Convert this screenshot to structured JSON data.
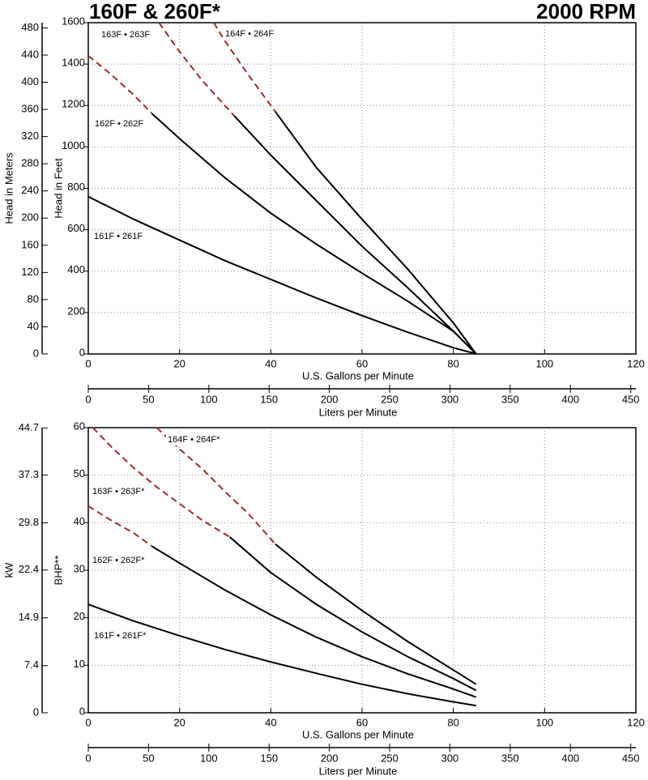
{
  "chart_data": [
    {
      "type": "line",
      "title": "160F & 260F*",
      "subtitle": "2000 RPM",
      "xlabel": "U.S. Gallons per Minute",
      "xlim": [
        0,
        120
      ],
      "xticks": [
        0,
        20,
        40,
        60,
        80,
        100,
        120
      ],
      "x2label": "Liters per Minute",
      "x2lim": [
        0,
        454.25
      ],
      "x2ticks": [
        0,
        50,
        100,
        150,
        200,
        250,
        300,
        350,
        400,
        450
      ],
      "ylabel": "Head in Feet",
      "ylim": [
        0,
        1600
      ],
      "yticks": [
        0,
        200,
        400,
        600,
        800,
        1000,
        1200,
        1400,
        1600
      ],
      "y2label": "Head in Meters",
      "y2lim": [
        0,
        487.68
      ],
      "y2ticks": [
        0,
        40,
        80,
        120,
        160,
        200,
        240,
        280,
        320,
        360,
        400,
        440,
        480
      ],
      "grid": true,
      "series": [
        {
          "name": "161F • 261F",
          "color": "#000000",
          "dashed_color": "#9b2d2a",
          "solid": {
            "x": [
              0,
              10,
              20,
              30,
              40,
              50,
              60,
              70,
              80,
              85
            ],
            "values": [
              760,
              650,
              550,
              450,
              360,
              270,
              185,
              105,
              30,
              0
            ]
          },
          "dashed": {
            "x": [],
            "values": []
          }
        },
        {
          "name": "162F • 262F",
          "color": "#000000",
          "dashed_color": "#9b2d2a",
          "solid": {
            "x": [
              14,
              20,
              30,
              40,
              50,
              60,
              70,
              80,
              85
            ],
            "values": [
              1160,
              1040,
              850,
              680,
              530,
              390,
              255,
              110,
              0
            ]
          },
          "dashed": {
            "x": [
              0,
              5,
              10,
              14
            ],
            "values": [
              1440,
              1350,
              1250,
              1160
            ]
          }
        },
        {
          "name": "163F • 263F",
          "color": "#000000",
          "dashed_color": "#9b2d2a",
          "solid": {
            "x": [
              32,
              40,
              50,
              60,
              70,
              80,
              85
            ],
            "values": [
              1150,
              960,
              740,
              520,
              320,
              110,
              0
            ]
          },
          "dashed": {
            "x": [
              15.5,
              20,
              25,
              32
            ],
            "values": [
              1600,
              1460,
              1320,
              1150
            ]
          }
        },
        {
          "name": "164F • 264F",
          "color": "#000000",
          "dashed_color": "#9b2d2a",
          "solid": {
            "x": [
              41,
              50,
              60,
              70,
              80,
              85
            ],
            "values": [
              1170,
              900,
              650,
              410,
              150,
              0
            ]
          },
          "dashed": {
            "x": [
              27.5,
              30,
              35,
              41
            ],
            "values": [
              1600,
              1510,
              1350,
              1170
            ]
          }
        }
      ]
    },
    {
      "type": "line",
      "xlabel": "U.S. Gallons per Minute",
      "xlim": [
        0,
        120
      ],
      "xticks": [
        0,
        20,
        40,
        60,
        80,
        100,
        120
      ],
      "x2label": "Liters per Minute",
      "x2lim": [
        0,
        454.25
      ],
      "x2ticks": [
        0,
        50,
        100,
        150,
        200,
        250,
        300,
        350,
        400,
        450
      ],
      "ylabel": "BHP**",
      "ylim": [
        0,
        60
      ],
      "yticks": [
        0,
        10,
        20,
        30,
        40,
        50,
        60
      ],
      "y2label": "kW",
      "y2lim": [
        0,
        44.74
      ],
      "y2ticks": [
        0,
        7.4,
        14.9,
        22.4,
        29.8,
        37.3,
        44.7
      ],
      "grid": true,
      "series": [
        {
          "name": "161F • 261F*",
          "color": "#000000",
          "dashed_color": "#9b2d2a",
          "solid": {
            "x": [
              0,
              10,
              20,
              30,
              40,
              50,
              60,
              70,
              80,
              85
            ],
            "values": [
              22.8,
              19.3,
              16.2,
              13.3,
              10.7,
              8.3,
              6.0,
              4.0,
              2.3,
              1.5
            ]
          },
          "dashed": {
            "x": [],
            "values": []
          }
        },
        {
          "name": "162F • 262F*",
          "color": "#000000",
          "dashed_color": "#9b2d2a",
          "solid": {
            "x": [
              14,
              20,
              30,
              40,
              50,
              60,
              70,
              80,
              85
            ],
            "values": [
              35,
              31.5,
              25.8,
              20.6,
              15.9,
              11.8,
              8.2,
              5,
              3.3
            ]
          },
          "dashed": {
            "x": [
              0,
              5,
              10,
              14
            ],
            "values": [
              43.5,
              40.5,
              37.8,
              35
            ]
          }
        },
        {
          "name": "163F • 263F*",
          "color": "#000000",
          "dashed_color": "#9b2d2a",
          "solid": {
            "x": [
              31,
              40,
              50,
              60,
              70,
              80,
              85
            ],
            "values": [
              37,
              29.5,
              22.8,
              17,
              11.8,
              7.2,
              4.7
            ]
          },
          "dashed": {
            "x": [
              1,
              5,
              10,
              15,
              20,
              25,
              31
            ],
            "values": [
              60,
              56,
              51.5,
              47.5,
              44,
              40.5,
              37
            ]
          }
        },
        {
          "name": "164F • 264F*",
          "color": "#000000",
          "dashed_color": "#9b2d2a",
          "solid": {
            "x": [
              41,
              50,
              60,
              70,
              80,
              85
            ],
            "values": [
              35.5,
              28.5,
              21.5,
              15,
              9,
              6
            ]
          },
          "dashed": {
            "x": [
              15,
              20,
              25,
              30,
              35,
              41
            ],
            "values": [
              60,
              55.5,
              51.3,
              46.5,
              42,
              35.5
            ]
          }
        }
      ]
    }
  ]
}
